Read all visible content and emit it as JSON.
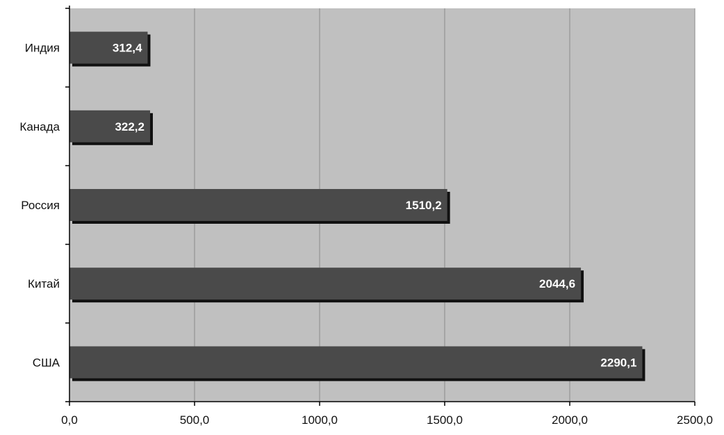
{
  "chart_data": {
    "type": "bar",
    "orientation": "horizontal",
    "categories": [
      "Индия",
      "Канада",
      "Россия",
      "Китай",
      "США"
    ],
    "values": [
      312.4,
      322.2,
      1510.2,
      2044.6,
      2290.1
    ],
    "value_labels": [
      "312,4",
      "322,2",
      "1510,2",
      "2044,6",
      "2290,1"
    ],
    "title": "",
    "xlabel": "",
    "ylabel": "",
    "xlim": [
      0,
      2500
    ],
    "x_ticks": [
      0,
      500,
      1000,
      1500,
      2000,
      2500
    ],
    "x_tick_labels": [
      "0,0",
      "500,0",
      "1000,0",
      "1500,0",
      "2000,0",
      "2500,0"
    ],
    "grid": "vertical",
    "legend": "none",
    "colors": {
      "plot_background": "#c0c0c0",
      "bar_fill": "#4a4a4a",
      "bar_shadow": "#111111",
      "gridline": "#8a8a8a",
      "axis": "#000000",
      "data_label": "#ffffff"
    }
  }
}
